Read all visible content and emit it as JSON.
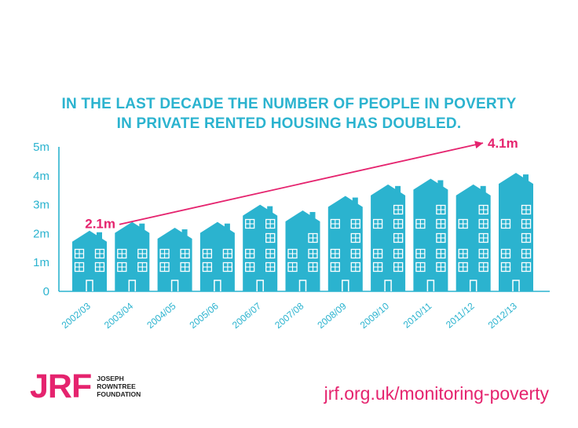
{
  "title_lines": [
    "IN THE LAST DECADE THE NUMBER OF PEOPLE IN POVERTY",
    "IN PRIVATE RENTED HOUSING HAS DOUBLED."
  ],
  "colors": {
    "title": "#2bb3cf",
    "house": "#2bb3cf",
    "accent": "#e5236e",
    "window": "#ffffff"
  },
  "chart_data": {
    "type": "bar",
    "categories": [
      "2002/03",
      "2003/04",
      "2004/05",
      "2005/06",
      "2006/07",
      "2007/08",
      "2008/09",
      "2009/10",
      "2010/11",
      "2011/12",
      "2012/13"
    ],
    "values": [
      2.1,
      2.4,
      2.2,
      2.4,
      3.0,
      2.8,
      3.3,
      3.7,
      3.9,
      3.7,
      4.1
    ],
    "ylim": [
      0,
      5
    ],
    "yticks": [
      "0",
      "1m",
      "2m",
      "3m",
      "4m",
      "5m"
    ],
    "annotations": {
      "start_label": "2.1m",
      "end_label": "4.1m"
    },
    "mark": "house-shaped bars"
  },
  "footer": {
    "logo_mark": "JRF",
    "logo_name_lines": [
      "JOSEPH",
      "ROWNTREE",
      "FOUNDATION"
    ],
    "url": "jrf.org.uk/monitoring-poverty"
  }
}
